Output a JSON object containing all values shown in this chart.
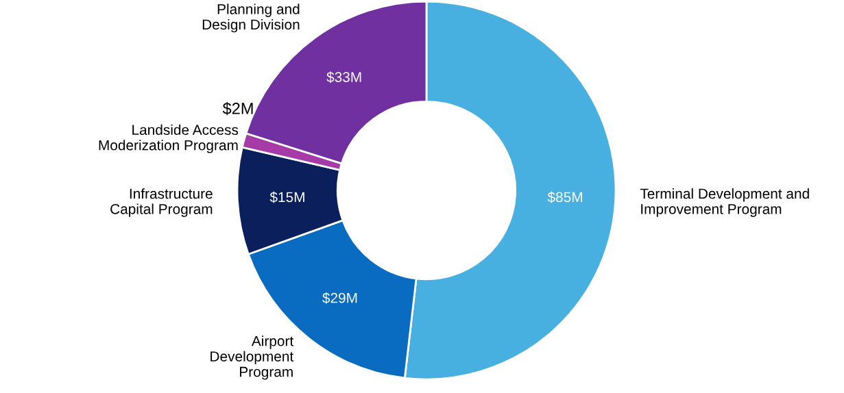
{
  "chart_data": {
    "type": "donut",
    "categories": [
      "Terminal Development and\nImprovement Program",
      "Airport\nDevelopment\nProgram",
      "Infrastructure\nCapital Program",
      "Landside Access\nModerization Program",
      "Planning and\nDesign Division"
    ],
    "values": [
      85,
      29,
      15,
      2,
      33
    ],
    "colors": [
      "#48b0e0",
      "#0a6cc0",
      "#0a1f5c",
      "#a63aa6",
      "#7030a0"
    ],
    "value_labels": [
      "$85M",
      "$29M",
      "$15M",
      "$2M",
      "$33M"
    ]
  }
}
